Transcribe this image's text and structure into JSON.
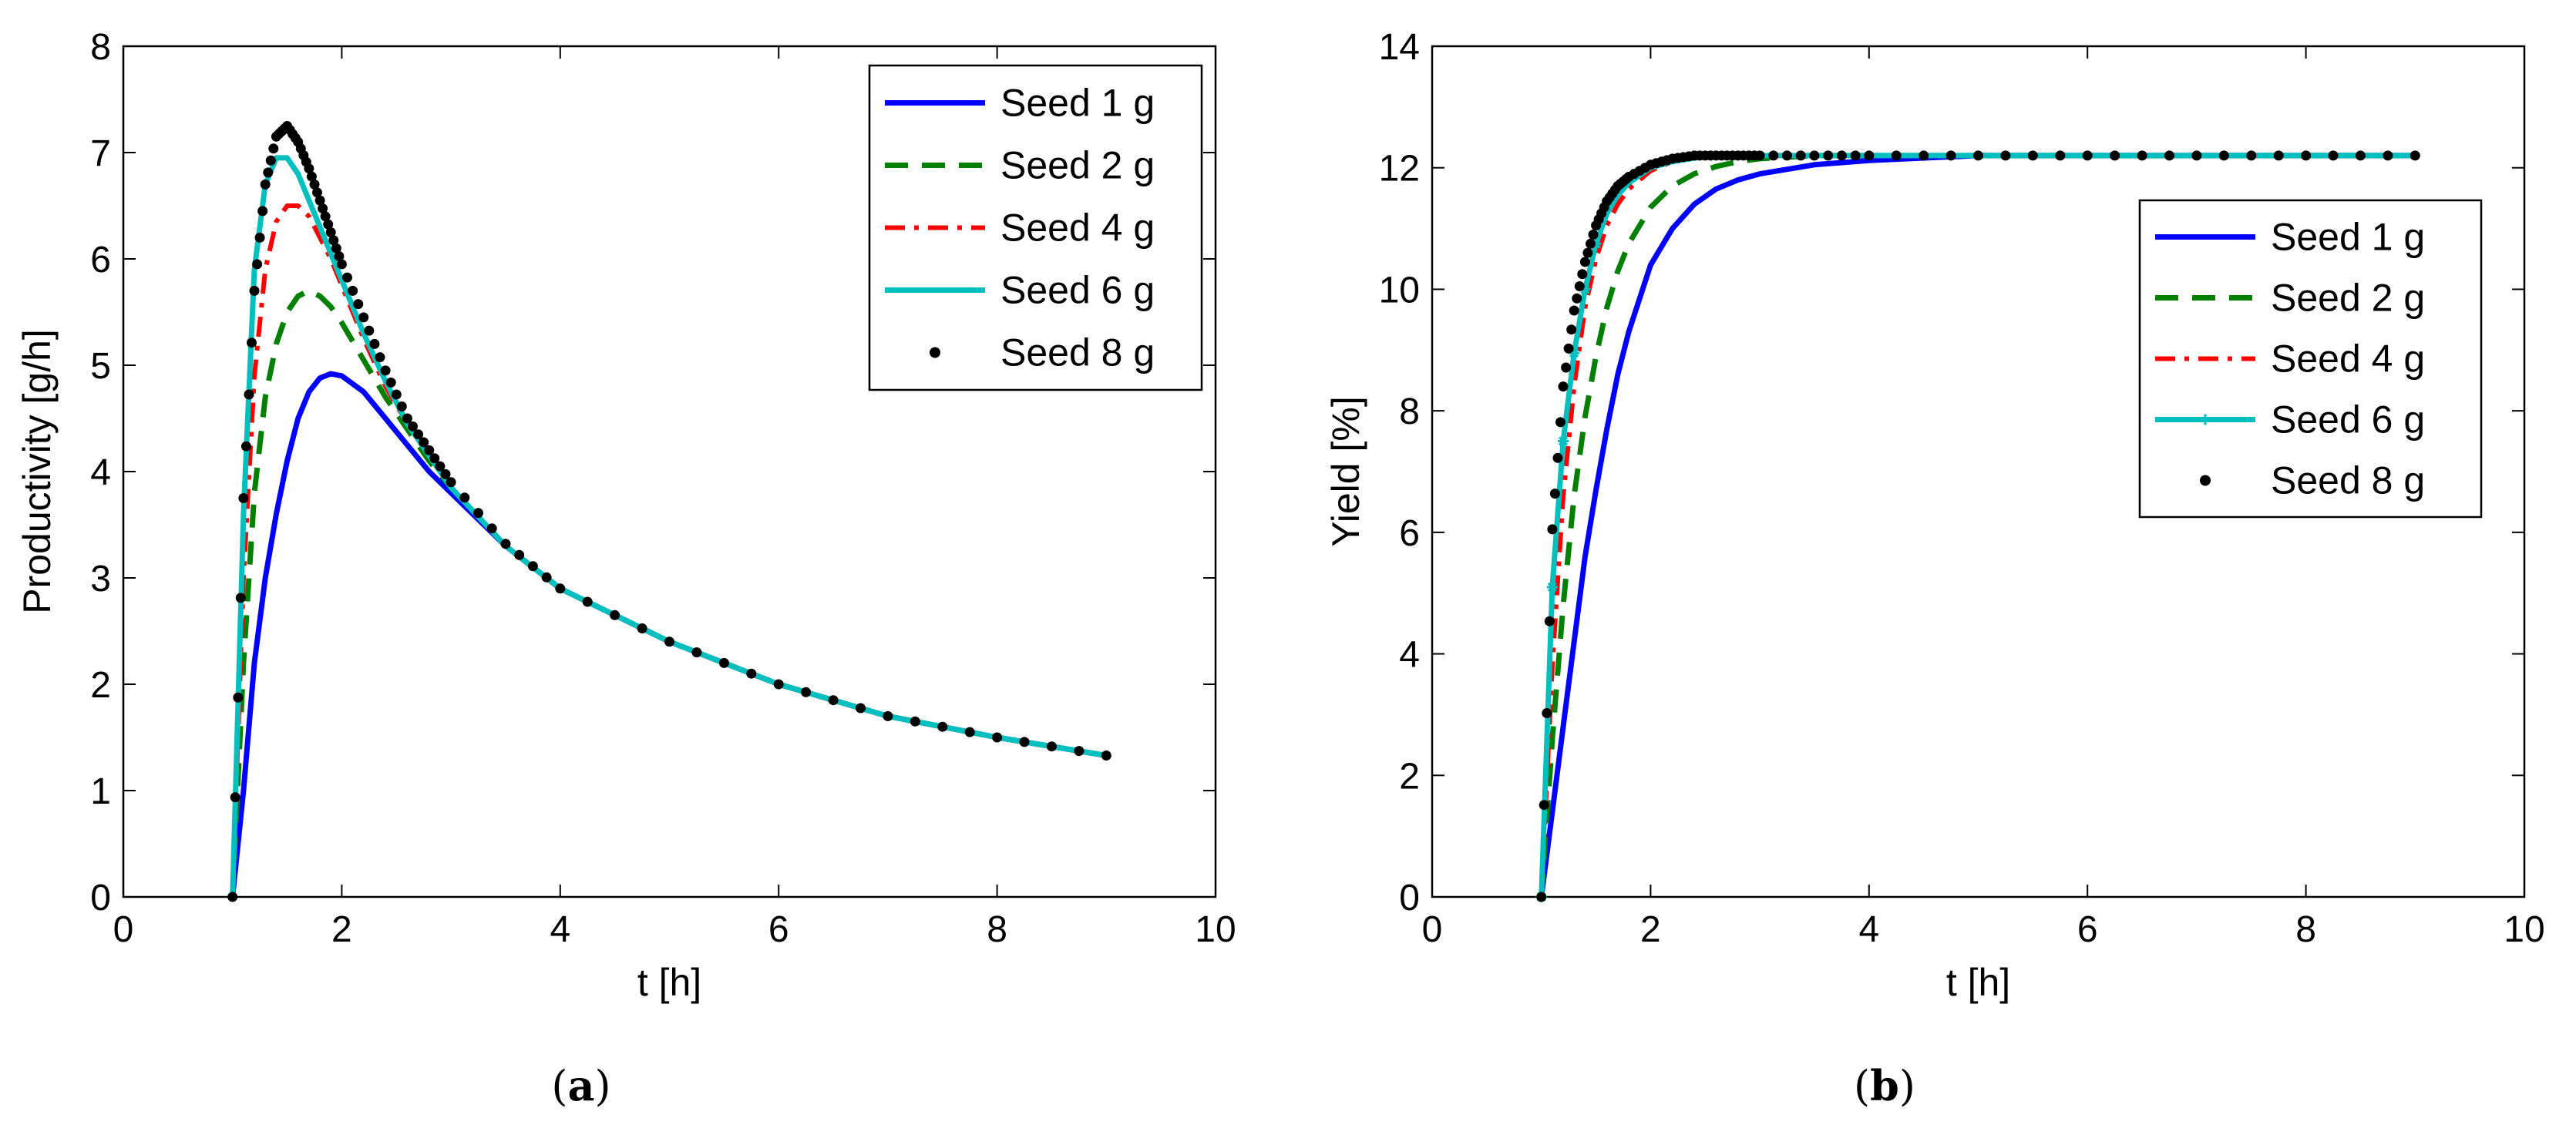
{
  "panels": [
    {
      "caption_open": "(",
      "caption_letter": "a",
      "caption_close": ")",
      "chart_data": {
        "type": "line",
        "xlabel": "t [h]",
        "ylabel": "Productivity [g/h]",
        "xlim": [
          0,
          10
        ],
        "ylim": [
          0,
          8
        ],
        "xticks": [
          0,
          2,
          4,
          6,
          8,
          10
        ],
        "yticks": [
          0,
          1,
          2,
          3,
          4,
          5,
          6,
          7,
          8
        ],
        "legend_position": "top-right",
        "series": [
          {
            "name": "Seed 1 g",
            "color": "#0000ff",
            "style": "solid",
            "x": [
              1,
              1.1,
              1.2,
              1.3,
              1.4,
              1.5,
              1.6,
              1.7,
              1.8,
              1.9,
              2.0,
              2.2,
              2.4,
              2.6,
              2.8,
              3.0,
              3.5,
              4,
              5,
              6,
              7,
              8,
              9
            ],
            "y": [
              0,
              1.0,
              2.2,
              3.0,
              3.6,
              4.1,
              4.5,
              4.75,
              4.88,
              4.92,
              4.9,
              4.75,
              4.5,
              4.25,
              4.0,
              3.8,
              3.3,
              2.9,
              2.4,
              2.0,
              1.7,
              1.5,
              1.33
            ]
          },
          {
            "name": "Seed 2 g",
            "color": "#008000",
            "style": "dashed",
            "x": [
              1,
              1.1,
              1.2,
              1.3,
              1.4,
              1.5,
              1.6,
              1.7,
              1.8,
              1.9,
              2.0,
              2.2,
              2.4,
              2.6,
              2.8,
              3.0,
              3.5,
              4,
              5,
              6,
              7,
              8,
              9
            ],
            "y": [
              0,
              2.2,
              3.8,
              4.7,
              5.2,
              5.5,
              5.65,
              5.7,
              5.65,
              5.55,
              5.4,
              5.05,
              4.7,
              4.4,
              4.1,
              3.85,
              3.3,
              2.9,
              2.4,
              2.0,
              1.7,
              1.5,
              1.33
            ]
          },
          {
            "name": "Seed 4 g",
            "color": "#ff0000",
            "style": "dashdot",
            "x": [
              1,
              1.1,
              1.2,
              1.3,
              1.4,
              1.5,
              1.6,
              1.7,
              1.8,
              1.9,
              2.0,
              2.2,
              2.4,
              2.6,
              2.8,
              3.0,
              3.5,
              4,
              5,
              6,
              7,
              8,
              9
            ],
            "y": [
              0,
              3.0,
              4.9,
              5.9,
              6.35,
              6.5,
              6.5,
              6.4,
              6.2,
              6.0,
              5.75,
              5.25,
              4.8,
              4.45,
              4.15,
              3.85,
              3.3,
              2.9,
              2.4,
              2.0,
              1.7,
              1.5,
              1.33
            ]
          },
          {
            "name": "Seed 6 g",
            "color": "#00bfbf",
            "style": "solid",
            "x": [
              1,
              1.1,
              1.2,
              1.3,
              1.4,
              1.5,
              1.6,
              1.7,
              1.8,
              1.9,
              2.0,
              2.2,
              2.4,
              2.6,
              2.8,
              3.0,
              3.5,
              4,
              5,
              6,
              7,
              8,
              9
            ],
            "y": [
              0,
              3.6,
              5.9,
              6.7,
              6.95,
              6.95,
              6.8,
              6.55,
              6.3,
              6.05,
              5.8,
              5.3,
              4.85,
              4.45,
              4.15,
              3.85,
              3.3,
              2.9,
              2.4,
              2.0,
              1.7,
              1.5,
              1.33
            ]
          },
          {
            "name": "Seed 8 g",
            "color": "#000000",
            "style": "dots",
            "x": [
              1,
              1.1,
              1.2,
              1.3,
              1.4,
              1.5,
              1.6,
              1.7,
              1.8,
              1.9,
              2.0,
              2.2,
              2.4,
              2.6,
              2.8,
              3.0,
              3.5,
              4,
              5,
              6,
              7,
              8,
              9
            ],
            "y": [
              0,
              3.75,
              5.7,
              6.7,
              7.15,
              7.25,
              7.1,
              6.85,
              6.55,
              6.25,
              5.95,
              5.45,
              4.95,
              4.5,
              4.2,
              3.9,
              3.32,
              2.9,
              2.4,
              2.0,
              1.7,
              1.5,
              1.33
            ]
          }
        ]
      }
    },
    {
      "caption_open": "(",
      "caption_letter": "b",
      "caption_close": ")",
      "chart_data": {
        "type": "line",
        "xlabel": "t [h]",
        "ylabel": "Yield [%]",
        "xlim": [
          0,
          10
        ],
        "ylim": [
          0,
          14
        ],
        "xticks": [
          0,
          2,
          4,
          6,
          8,
          10
        ],
        "yticks": [
          0,
          2,
          4,
          6,
          8,
          10,
          12,
          14
        ],
        "legend_position": "center-right",
        "series": [
          {
            "name": "Seed 1 g",
            "color": "#0000ff",
            "style": "solid",
            "x": [
              1,
              1.1,
              1.2,
              1.3,
              1.4,
              1.5,
              1.6,
              1.7,
              1.8,
              2.0,
              2.2,
              2.4,
              2.6,
              2.8,
              3.0,
              3.5,
              4,
              5,
              6,
              7,
              8,
              9
            ],
            "y": [
              0,
              1.4,
              2.8,
              4.2,
              5.6,
              6.7,
              7.7,
              8.6,
              9.3,
              10.4,
              11.0,
              11.4,
              11.65,
              11.8,
              11.9,
              12.05,
              12.12,
              12.2,
              12.2,
              12.2,
              12.2,
              12.2
            ]
          },
          {
            "name": "Seed 2 g",
            "color": "#008000",
            "style": "dashed",
            "x": [
              1,
              1.1,
              1.2,
              1.3,
              1.4,
              1.5,
              1.6,
              1.7,
              1.8,
              2.0,
              2.2,
              2.4,
              2.6,
              2.8,
              3.0,
              3.5,
              4,
              5,
              6,
              7,
              8,
              9
            ],
            "y": [
              0,
              2.6,
              4.8,
              6.6,
              7.9,
              8.9,
              9.7,
              10.3,
              10.75,
              11.35,
              11.7,
              11.9,
              12.02,
              12.1,
              12.15,
              12.2,
              12.2,
              12.2,
              12.2,
              12.2,
              12.2,
              12.2
            ]
          },
          {
            "name": "Seed 4 g",
            "color": "#ff0000",
            "style": "dashdot",
            "x": [
              1,
              1.1,
              1.2,
              1.3,
              1.4,
              1.5,
              1.6,
              1.7,
              1.8,
              2.0,
              2.2,
              2.4,
              2.6,
              2.8,
              3.0,
              3.5,
              4,
              5,
              6,
              7,
              8,
              9
            ],
            "y": [
              0,
              3.8,
              6.6,
              8.4,
              9.7,
              10.5,
              11.05,
              11.4,
              11.65,
              11.95,
              12.1,
              12.16,
              12.2,
              12.2,
              12.2,
              12.2,
              12.2,
              12.2,
              12.2,
              12.2,
              12.2,
              12.2
            ]
          },
          {
            "name": "Seed 6 g",
            "color": "#00bfbf",
            "style": "solid-star",
            "x": [
              1,
              1.1,
              1.2,
              1.3,
              1.4,
              1.5,
              1.6,
              1.7,
              1.8,
              2.0,
              2.2,
              2.4,
              2.6,
              2.8,
              3.0,
              3.5,
              4,
              5,
              6,
              7,
              8,
              9
            ],
            "y": [
              0,
              5.1,
              7.5,
              8.95,
              10.0,
              10.75,
              11.25,
              11.55,
              11.75,
              12.0,
              12.1,
              12.16,
              12.2,
              12.2,
              12.2,
              12.2,
              12.2,
              12.2,
              12.2,
              12.2,
              12.2,
              12.2
            ]
          },
          {
            "name": "Seed 8 g",
            "color": "#000000",
            "style": "dots",
            "x": [
              1,
              1.1,
              1.2,
              1.3,
              1.4,
              1.5,
              1.6,
              1.7,
              1.8,
              2.0,
              2.2,
              2.4,
              2.6,
              2.8,
              3.0,
              3.5,
              4,
              5,
              6,
              7,
              8,
              9
            ],
            "y": [
              0,
              6.05,
              8.4,
              9.65,
              10.45,
              11.05,
              11.45,
              11.7,
              11.85,
              12.05,
              12.15,
              12.2,
              12.2,
              12.2,
              12.2,
              12.2,
              12.2,
              12.2,
              12.2,
              12.2,
              12.2,
              12.2
            ]
          }
        ]
      }
    }
  ]
}
